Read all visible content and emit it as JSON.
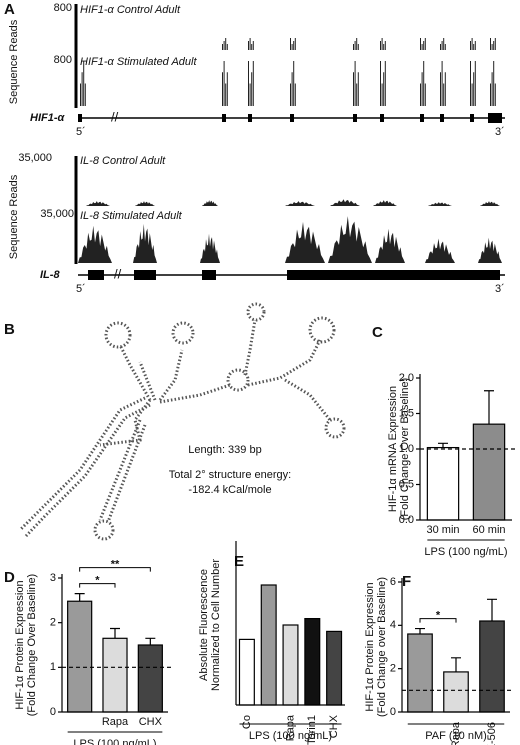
{
  "panel_a": {
    "label": "A",
    "ylabel": "Sequence Reads",
    "hif": {
      "scale_control": "800",
      "control": "HIF1-α Control Adult",
      "scale_stimulated": "800",
      "stimulated": "HIF1-α Stimulated Adult",
      "gene": "HIF1-α",
      "five": "5´",
      "three": "3´"
    },
    "il8": {
      "scale_control": "35,000",
      "control": "IL-8 Control Adult",
      "scale_stimulated": "35,000",
      "stimulated": "IL-8 Stimulated Adult",
      "gene": "IL-8",
      "five": "5´",
      "three": "3´"
    }
  },
  "panel_b": {
    "label": "B",
    "length": "Length:  339 bp",
    "energy_title": "Total 2° structure energy:",
    "energy": "-182.4 kCal/mole"
  },
  "chart_data": [
    {
      "type": "bar",
      "label": "C",
      "ylabel": [
        "HIF-1α mRNA Expression",
        "(Fold Change Over Baseline)"
      ],
      "xlabel": "LPS (100 ng/mL)",
      "categories": [
        "30 min",
        "60 min"
      ],
      "values": [
        1.02,
        1.35
      ],
      "errors": [
        0.06,
        0.47
      ],
      "colors": [
        "#ffffff",
        "#8c8c8c"
      ],
      "ylim": [
        0,
        2
      ],
      "yticks": [
        {
          "value": 0,
          "label": "0.0"
        },
        {
          "value": 0.5,
          "label": "0.5"
        },
        {
          "value": 1,
          "label": "1.0"
        },
        {
          "value": 1.5,
          "label": "1.5"
        },
        {
          "value": 2,
          "label": "2.0"
        }
      ],
      "reference_line": 1
    },
    {
      "type": "bar",
      "label": "D",
      "ylabel": [
        "HIF-1α Protein Expression",
        "(Fold Change Over Baseline)"
      ],
      "xlabel": "LPS (100 ng/mL)",
      "categories": [
        null,
        "Rapa",
        "CHX"
      ],
      "values": [
        2.48,
        1.65,
        1.5
      ],
      "errors": [
        0.17,
        0.22,
        0.15
      ],
      "colors": [
        "#9a9a9a",
        "#dcdcdc",
        "#444444"
      ],
      "ylim": [
        0,
        3
      ],
      "yticks": [
        0,
        1,
        2,
        3
      ],
      "reference_line": 1,
      "annotations": [
        {
          "text": "*",
          "from": 0,
          "to": 1
        },
        {
          "text": "**",
          "from": 0,
          "to": 2
        }
      ]
    },
    {
      "type": "bar",
      "label": "E",
      "ylabel": [
        "Absolute Fluorescence",
        "Normalized to Cell Number"
      ],
      "xlabel": "LPS (100 ng/mL)",
      "categories": [
        "Co",
        null,
        "Rapa",
        "Torin1",
        "CHX"
      ],
      "values": [
        0.41,
        0.75,
        0.5,
        0.54,
        0.46
      ],
      "colors": [
        "#ffffff",
        "#9a9a9a",
        "#dcdcdc",
        "#111111",
        "#444444"
      ],
      "ylim": [
        0,
        1
      ]
    },
    {
      "type": "bar",
      "label": "F",
      "ylabel": [
        "HIF-1α Protein Expression",
        "(Fold Change over Baseline)"
      ],
      "xlabel": "PAF (10 nM)",
      "categories": [
        null,
        "Rapa",
        "FK-506"
      ],
      "values": [
        3.6,
        1.85,
        4.2
      ],
      "errors": [
        0.25,
        0.65,
        1.0
      ],
      "colors": [
        "#9a9a9a",
        "#dcdcdc",
        "#444444"
      ],
      "ylim": [
        0,
        6
      ],
      "yticks": [
        0,
        2,
        4,
        6
      ],
      "reference_line": 1,
      "annotations": [
        {
          "text": "*",
          "from": 0,
          "to": 1
        }
      ]
    }
  ]
}
